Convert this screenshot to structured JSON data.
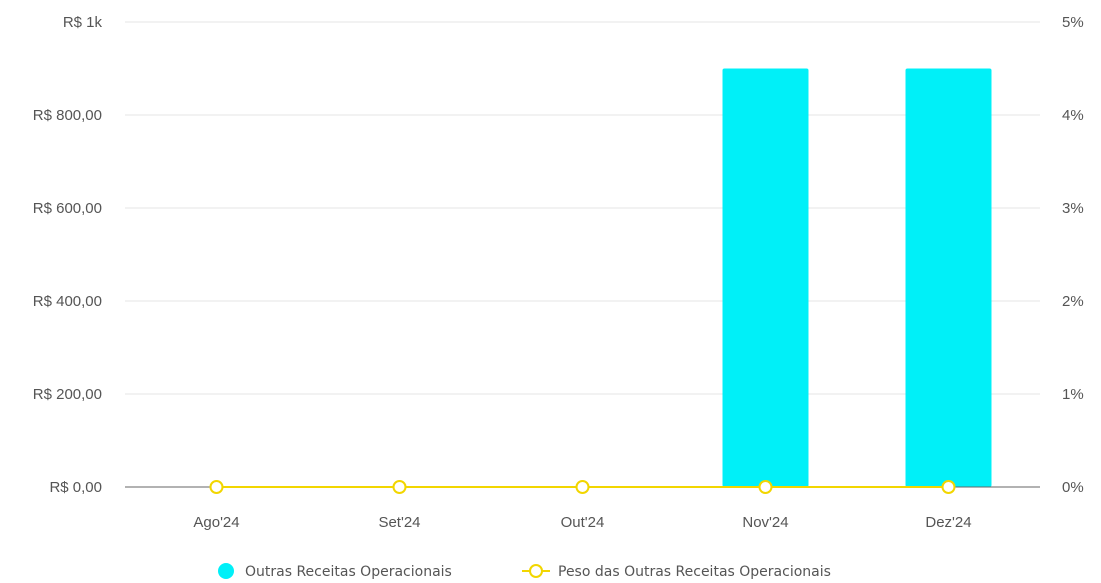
{
  "chart_data": {
    "type": "bar",
    "categories": [
      "Ago'24",
      "Set'24",
      "Out'24",
      "Nov'24",
      "Dez'24"
    ],
    "series": [
      {
        "name": "Outras Receitas Operacionais",
        "type": "bar",
        "axis": "left",
        "color": "#00f0f8",
        "values": [
          0,
          0,
          0,
          900,
          900
        ]
      },
      {
        "name": "Peso das Outras Receitas Operacionais",
        "type": "line",
        "axis": "right",
        "color": "#f2d600",
        "values": [
          0,
          0,
          0,
          0,
          0
        ]
      }
    ],
    "y_left": {
      "ylim": [
        0,
        1000
      ],
      "ticks": [
        0,
        200,
        400,
        600,
        800,
        1000
      ],
      "tick_labels": [
        "R$ 0,00",
        "R$ 200,00",
        "R$ 400,00",
        "R$ 600,00",
        "R$ 800,00",
        "R$ 1k"
      ]
    },
    "y_right": {
      "ylim": [
        0,
        5
      ],
      "ticks": [
        0,
        1,
        2,
        3,
        4,
        5
      ],
      "tick_labels": [
        "0%",
        "1%",
        "2%",
        "3%",
        "4%",
        "5%"
      ]
    },
    "grid": true,
    "legend_position": "bottom"
  }
}
